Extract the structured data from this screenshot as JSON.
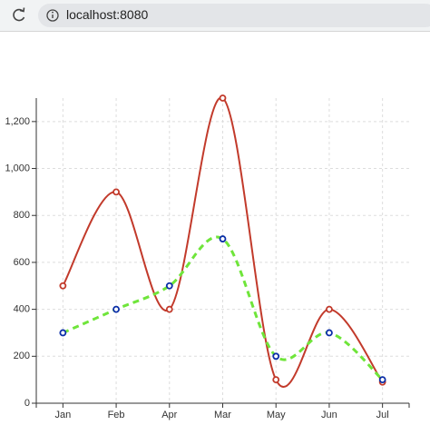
{
  "browser": {
    "url": "localhost:8080"
  },
  "chart_data": {
    "type": "line",
    "categories": [
      "Jan",
      "Feb",
      "Apr",
      "Mar",
      "May",
      "Jun",
      "Jul"
    ],
    "series": [
      {
        "color": "#c23a2b",
        "marker_color": "#c23a2b",
        "dashed": false,
        "values": [
          500,
          900,
          400,
          1300,
          100,
          400,
          90
        ]
      },
      {
        "color": "#6fe53a",
        "marker_color": "#0b2fa8",
        "dashed": true,
        "values": [
          300,
          400,
          500,
          700,
          200,
          300,
          100
        ]
      }
    ],
    "ylim": [
      0,
      1300
    ],
    "yticks": [
      0,
      200,
      400,
      600,
      800,
      {
        "value": 1000,
        "label": "1,000"
      },
      {
        "value": 1200,
        "label": "1,200"
      }
    ],
    "grid": true,
    "smooth": true
  }
}
